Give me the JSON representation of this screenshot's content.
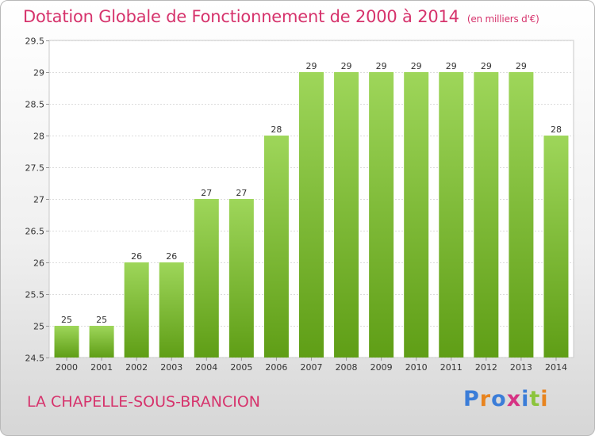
{
  "title": "Dotation Globale de Fonctionnement de 2000 à 2014",
  "unit_label": "(en milliers d'€)",
  "place": "LA CHAPELLE-SOUS-BRANCION",
  "logo": {
    "text": "Proxiti",
    "colors": [
      "#3b7dd8",
      "#e8841f",
      "#3b7dd8",
      "#d63384",
      "#3b7dd8",
      "#8cc43c",
      "#e8841f"
    ]
  },
  "colors": {
    "bar_top": "#9ed65a",
    "bar_bottom": "#5f9e16",
    "title": "#d6336c"
  },
  "chart_data": {
    "type": "bar",
    "categories": [
      "2000",
      "2001",
      "2002",
      "2003",
      "2004",
      "2005",
      "2006",
      "2007",
      "2008",
      "2009",
      "2010",
      "2011",
      "2012",
      "2013",
      "2014"
    ],
    "values": [
      25,
      25,
      26,
      26,
      27,
      27,
      28,
      29,
      29,
      29,
      29,
      29,
      29,
      29,
      28
    ],
    "value_labels": [
      "25",
      "25",
      "26",
      "26",
      "27",
      "27",
      "28",
      "29",
      "29",
      "29",
      "29",
      "29",
      "29",
      "29",
      "28"
    ],
    "ylim": [
      24.5,
      29.5
    ],
    "yticks": [
      24.5,
      25,
      25.5,
      26,
      26.5,
      27,
      27.5,
      28,
      28.5,
      29,
      29.5
    ],
    "ytick_labels": [
      "24.5",
      "25",
      "25.5",
      "26",
      "26.5",
      "27",
      "27.5",
      "28",
      "28.5",
      "29",
      "29.5"
    ],
    "grid": true,
    "legend": "none"
  }
}
